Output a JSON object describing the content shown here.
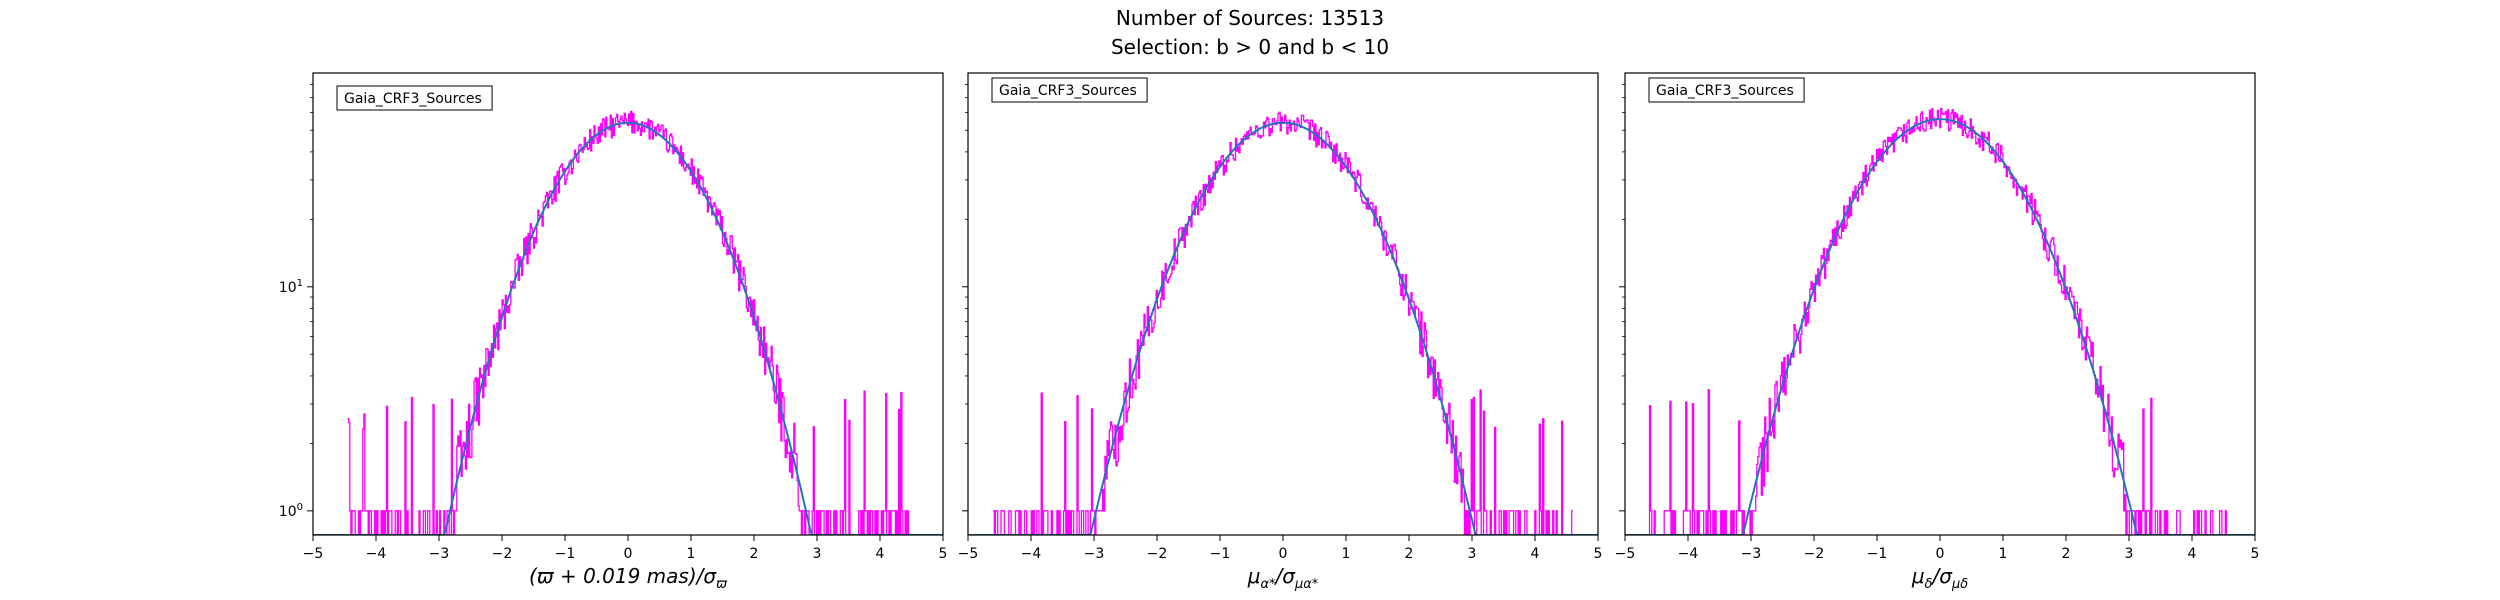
{
  "figure": {
    "title_line1": "Number of Sources: 13513",
    "title_line2": "Selection: b > 0 and b < 10"
  },
  "colors": {
    "histogram": "#ff00ff",
    "fit_curve": "#1f77b4",
    "axes": "#000000"
  },
  "chart_data": [
    {
      "type": "line",
      "legend": "Gaia_CRF3_Sources",
      "legend_position": "top-left",
      "xlabel": "(ϖ + 0.019 mas)/σϖ",
      "ylabel": "",
      "xlim": [
        -5,
        5
      ],
      "ylim": [
        0.78,
        90
      ],
      "y_scale": "log",
      "grid": false,
      "x_ticks": [
        "−5",
        "−4",
        "−3",
        "−2",
        "−1",
        "0",
        "1",
        "2",
        "3",
        "4",
        "5"
      ],
      "y_ticks": [
        {
          "value": 1,
          "label": "10⁰"
        },
        {
          "value": 10,
          "label": "10¹"
        }
      ],
      "series": [
        {
          "style": "histogram-step",
          "x_range": [
            -4.45,
            4.45
          ],
          "gaussian_peak": 54,
          "sigma": 1.0
        },
        {
          "style": "gaussian-fit",
          "peak": 54,
          "mean": 0.0,
          "sigma": 1.0
        }
      ]
    },
    {
      "type": "line",
      "legend": "Gaia_CRF3_Sources",
      "legend_position": "top-left",
      "xlabel": "μα*/σμα*",
      "ylabel": "",
      "xlim": [
        -5,
        5
      ],
      "ylim": [
        0.78,
        90
      ],
      "y_scale": "log",
      "grid": false,
      "x_ticks": [
        "−5",
        "−4",
        "−3",
        "−2",
        "−1",
        "0",
        "1",
        "2",
        "3",
        "4",
        "5"
      ],
      "y_ticks": [
        {
          "value": 1,
          "label": ""
        },
        {
          "value": 10,
          "label": ""
        }
      ],
      "series": [
        {
          "style": "histogram-step",
          "x_range": [
            -4.6,
            4.6
          ],
          "gaussian_peak": 54,
          "sigma": 1.05
        },
        {
          "style": "gaussian-fit",
          "peak": 54,
          "mean": 0.0,
          "sigma": 1.05
        }
      ]
    },
    {
      "type": "line",
      "legend": "Gaia_CRF3_Sources",
      "legend_position": "top-left",
      "xlabel": "μδ/σμδ",
      "ylabel": "",
      "xlim": [
        -5,
        5
      ],
      "ylim": [
        0.78,
        90
      ],
      "y_scale": "log",
      "grid": false,
      "x_ticks": [
        "−5",
        "−4",
        "−3",
        "−2",
        "−1",
        "0",
        "1",
        "2",
        "3",
        "4",
        "5"
      ],
      "y_ticks": [
        {
          "value": 1,
          "label": ""
        },
        {
          "value": 10,
          "label": ""
        }
      ],
      "series": [
        {
          "style": "histogram-step",
          "x_range": [
            -4.7,
            4.6
          ],
          "gaussian_peak": 56,
          "sigma": 1.07
        },
        {
          "style": "gaussian-fit",
          "peak": 56,
          "mean": 0.0,
          "sigma": 1.07
        }
      ]
    }
  ]
}
